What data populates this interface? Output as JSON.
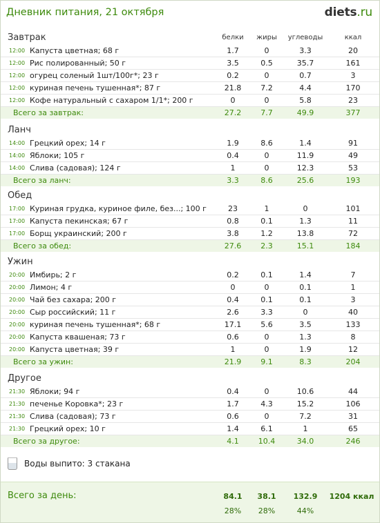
{
  "header": {
    "title": "Дневник питания, 21 октября",
    "logo_main": "diets",
    "logo_suffix": ".ru"
  },
  "columns": {
    "protein": "белки",
    "fat": "жиры",
    "carbs": "углеводы",
    "kcal": "ккал"
  },
  "meals": [
    {
      "title": "Завтрак",
      "items": [
        {
          "time": "12:00",
          "name": "Капуста цветная; 68 г",
          "protein": "1.7",
          "fat": "0",
          "carbs": "3.3",
          "kcal": "20"
        },
        {
          "time": "12:00",
          "name": "Рис полированный; 50 г",
          "protein": "3.5",
          "fat": "0.5",
          "carbs": "35.7",
          "kcal": "161"
        },
        {
          "time": "12:00",
          "name": "огурец соленый 1шт/100г*; 23 г",
          "protein": "0.2",
          "fat": "0",
          "carbs": "0.7",
          "kcal": "3"
        },
        {
          "time": "12:00",
          "name": "куриная печень тушенная*; 87 г",
          "protein": "21.8",
          "fat": "7.2",
          "carbs": "4.4",
          "kcal": "170"
        },
        {
          "time": "12:00",
          "name": "Кофе натуральный  с сахаром 1/1*; 200 г",
          "protein": "0",
          "fat": "0",
          "carbs": "5.8",
          "kcal": "23"
        }
      ],
      "total": {
        "label": "Всего за завтрак:",
        "protein": "27.2",
        "fat": "7.7",
        "carbs": "49.9",
        "kcal": "377"
      }
    },
    {
      "title": "Ланч",
      "items": [
        {
          "time": "14:00",
          "name": "Грецкий орех; 14 г",
          "protein": "1.9",
          "fat": "8.6",
          "carbs": "1.4",
          "kcal": "91"
        },
        {
          "time": "14:00",
          "name": "Яблоки; 105 г",
          "protein": "0.4",
          "fat": "0",
          "carbs": "11.9",
          "kcal": "49"
        },
        {
          "time": "14:00",
          "name": "Слива (садовая); 124 г",
          "protein": "1",
          "fat": "0",
          "carbs": "12.3",
          "kcal": "53"
        }
      ],
      "total": {
        "label": "Всего за ланч:",
        "protein": "3.3",
        "fat": "8.6",
        "carbs": "25.6",
        "kcal": "193"
      }
    },
    {
      "title": "Обед",
      "items": [
        {
          "time": "17:00",
          "name": "Куриная грудка, куриное филе, без...; 100 г",
          "protein": "23",
          "fat": "1",
          "carbs": "0",
          "kcal": "101"
        },
        {
          "time": "17:00",
          "name": "Капуста пекинская; 67 г",
          "protein": "0.8",
          "fat": "0.1",
          "carbs": "1.3",
          "kcal": "11"
        },
        {
          "time": "17:00",
          "name": "Борщ украинский; 200 г",
          "protein": "3.8",
          "fat": "1.2",
          "carbs": "13.8",
          "kcal": "72"
        }
      ],
      "total": {
        "label": "Всего за обед:",
        "protein": "27.6",
        "fat": "2.3",
        "carbs": "15.1",
        "kcal": "184"
      }
    },
    {
      "title": "Ужин",
      "items": [
        {
          "time": "20:00",
          "name": "Имбирь; 2 г",
          "protein": "0.2",
          "fat": "0.1",
          "carbs": "1.4",
          "kcal": "7"
        },
        {
          "time": "20:00",
          "name": "Лимон; 4 г",
          "protein": "0",
          "fat": "0",
          "carbs": "0.1",
          "kcal": "1"
        },
        {
          "time": "20:00",
          "name": "Чай без сахара; 200 г",
          "protein": "0.4",
          "fat": "0.1",
          "carbs": "0.1",
          "kcal": "3"
        },
        {
          "time": "20:00",
          "name": "Сыр российский; 11 г",
          "protein": "2.6",
          "fat": "3.3",
          "carbs": "0",
          "kcal": "40"
        },
        {
          "time": "20:00",
          "name": "куриная печень тушенная*; 68 г",
          "protein": "17.1",
          "fat": "5.6",
          "carbs": "3.5",
          "kcal": "133"
        },
        {
          "time": "20:00",
          "name": "Капуста квашеная; 73 г",
          "protein": "0.6",
          "fat": "0",
          "carbs": "1.3",
          "kcal": "8"
        },
        {
          "time": "20:00",
          "name": "Капуста цветная; 39 г",
          "protein": "1",
          "fat": "0",
          "carbs": "1.9",
          "kcal": "12"
        }
      ],
      "total": {
        "label": "Всего за ужин:",
        "protein": "21.9",
        "fat": "9.1",
        "carbs": "8.3",
        "kcal": "204"
      }
    },
    {
      "title": "Другое",
      "items": [
        {
          "time": "21:30",
          "name": "Яблоки; 94 г",
          "protein": "0.4",
          "fat": "0",
          "carbs": "10.6",
          "kcal": "44"
        },
        {
          "time": "21:30",
          "name": "печенье Коровка*; 23 г",
          "protein": "1.7",
          "fat": "4.3",
          "carbs": "15.2",
          "kcal": "106"
        },
        {
          "time": "21:30",
          "name": "Слива (садовая); 73 г",
          "protein": "0.6",
          "fat": "0",
          "carbs": "7.2",
          "kcal": "31"
        },
        {
          "time": "21:30",
          "name": "Грецкий орех; 10 г",
          "protein": "1.4",
          "fat": "6.1",
          "carbs": "1",
          "kcal": "65"
        }
      ],
      "total": {
        "label": "Всего за другое:",
        "protein": "4.1",
        "fat": "10.4",
        "carbs": "34.0",
        "kcal": "246"
      }
    }
  ],
  "water": {
    "icon": "water-glass-icon",
    "text": "Воды выпито: 3 стакана"
  },
  "day_total": {
    "label": "Всего за день:",
    "protein": "84.1",
    "fat": "38.1",
    "carbs": "132.9",
    "kcal": "1204 ккал",
    "protein_pct": "28%",
    "fat_pct": "28%",
    "carbs_pct": "44%"
  },
  "colors": {
    "accent": "#3d8a0c",
    "total_bg": "#eef6e6"
  }
}
